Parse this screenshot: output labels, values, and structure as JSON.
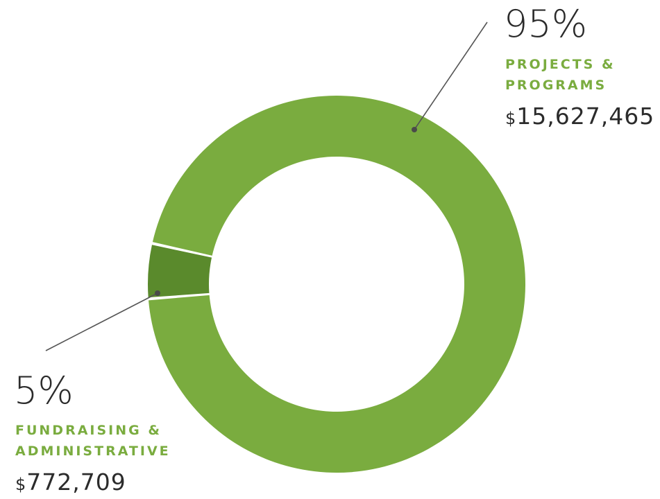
{
  "chart_data": {
    "type": "pie",
    "donut": true,
    "title": "",
    "currency_symbol": "$",
    "slices": [
      {
        "percent_label": "95%",
        "label_lines": [
          "PROJECTS &",
          "PROGRAMS"
        ],
        "amount": "15,627,465",
        "value": 15627465,
        "color": "#7aac3f"
      },
      {
        "percent_label": "5%",
        "label_lines": [
          "FUNDRAISING &",
          "ADMINISTRATIVE"
        ],
        "amount": "772,709",
        "value": 772709,
        "color": "#5a8a2c"
      }
    ]
  }
}
